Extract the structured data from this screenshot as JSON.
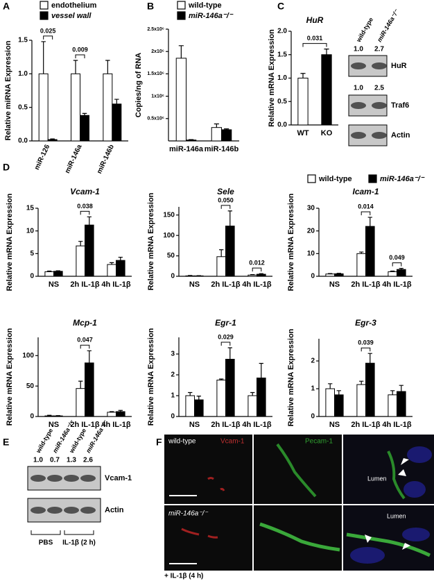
{
  "panel_labels": [
    "A",
    "B",
    "C",
    "D",
    "E",
    "F"
  ],
  "chart_data": [
    {
      "type": "bar",
      "y_label": "Relative miRNA Expression",
      "categories": [
        "miR-126",
        "miR-146a",
        "miR-146b"
      ],
      "series": [
        {
          "name": "endothelium",
          "color": "#ffffff",
          "values": [
            1.0,
            1.0,
            1.0
          ],
          "errors": [
            0.48,
            0.2,
            0.2
          ]
        },
        {
          "name": "vessel wall",
          "color": "#000000",
          "values": [
            0.02,
            0.38,
            0.55
          ],
          "errors": [
            0.01,
            0.03,
            0.07
          ]
        }
      ],
      "ylim": [
        0,
        1.5
      ],
      "yticks": [
        {
          "value": 0,
          "label": "0.0"
        },
        0.5,
        {
          "value": 1,
          "label": "1.0"
        },
        1.5
      ],
      "annotations": [
        {
          "category": "miR-126",
          "text": "0.025"
        },
        {
          "category": "miR-146a",
          "text": "0.009"
        }
      ]
    },
    {
      "type": "bar",
      "y_label": "Copies/ng of RNA",
      "categories": [
        "miR-146a",
        "miR-146b"
      ],
      "series": [
        {
          "name": "wild-type",
          "color": "#ffffff",
          "values": [
            1850000,
            300000
          ],
          "errors": [
            280000,
            80000
          ]
        },
        {
          "name": "miR-146a⁻/⁻",
          "color": "#000000",
          "values": [
            20000,
            250000
          ],
          "errors": [
            10000,
            20000
          ]
        }
      ],
      "ylim": [
        0,
        2500000
      ],
      "yticks": [
        {
          "value": 500000,
          "label": "0.5x10⁶"
        },
        {
          "value": 1000000,
          "label": "1x10⁶"
        },
        {
          "value": 1500000,
          "label": "1.5x10⁶"
        },
        {
          "value": 2000000,
          "label": "2x10⁶"
        },
        {
          "value": 2500000,
          "label": "2.5x10⁶"
        }
      ]
    },
    {
      "type": "bar",
      "title": "HuR",
      "y_label": "Relative mRNA Expression",
      "categories": [
        "WT",
        "KO"
      ],
      "series": [
        {
          "colors": [
            "#ffffff",
            "#000000"
          ],
          "values": [
            1.0,
            1.5
          ],
          "errors": [
            0.1,
            0.12
          ]
        }
      ],
      "ylim": [
        0,
        2
      ],
      "yticks": [
        {
          "value": 0,
          "label": "0.0"
        },
        0.5,
        {
          "value": 1,
          "label": "1.0"
        },
        1.5,
        {
          "value": 2,
          "label": "2.0"
        }
      ],
      "annotations": [
        {
          "categories": [
            "WT",
            "KO"
          ],
          "text": "0.031"
        }
      ]
    },
    {
      "type": "bar",
      "title": "Vcam-1",
      "y_label": "Relative mRNA Expression",
      "categories": [
        "NS",
        "2h IL-1β",
        "4h IL-1β"
      ],
      "series": [
        {
          "name": "wild-type",
          "color": "#ffffff",
          "values": [
            1.0,
            6.7,
            2.6
          ],
          "errors": [
            0.15,
            1.0,
            0.4
          ]
        },
        {
          "name": "miR-146a⁻/⁻",
          "color": "#000000",
          "values": [
            1.1,
            11.3,
            3.5
          ],
          "errors": [
            0.1,
            1.8,
            0.7
          ]
        }
      ],
      "ylim": [
        0,
        15
      ],
      "yticks": [
        0,
        5,
        10,
        15
      ],
      "annotations": [
        {
          "category": "2h IL-1β",
          "text": "0.038"
        }
      ]
    },
    {
      "type": "bar",
      "title": "Sele",
      "y_label": "Relative mRNA Expression",
      "categories": [
        "NS",
        "2h IL-1β",
        "4h IL-1β"
      ],
      "series": [
        {
          "color": "#ffffff",
          "values": [
            1,
            48,
            3
          ],
          "errors": [
            1,
            17,
            1
          ]
        },
        {
          "color": "#000000",
          "values": [
            1,
            123,
            5
          ],
          "errors": [
            0.5,
            37,
            1.5
          ]
        }
      ],
      "ylim": [
        0,
        170
      ],
      "yticks": [
        0,
        50,
        100,
        150
      ],
      "annotations": [
        {
          "category": "2h IL-1β",
          "text": "0.050"
        },
        {
          "category": "4h IL-1β",
          "text": "0.012"
        }
      ]
    },
    {
      "type": "bar",
      "title": "Icam-1",
      "y_label": "Relative mRNA Expression",
      "categories": [
        "NS",
        "2h IL-1β",
        "4h IL-1β"
      ],
      "series": [
        {
          "color": "#ffffff",
          "values": [
            1.0,
            10,
            2
          ],
          "errors": [
            0.2,
            0.7,
            0.3
          ]
        },
        {
          "color": "#000000",
          "values": [
            1.1,
            22,
            3
          ],
          "errors": [
            0.2,
            4,
            0.5
          ]
        }
      ],
      "ylim": [
        0,
        30
      ],
      "yticks": [
        0,
        10,
        20,
        30
      ],
      "annotations": [
        {
          "category": "2h IL-1β",
          "text": "0.014"
        },
        {
          "category": "4h IL-1β",
          "text": "0.049"
        }
      ]
    },
    {
      "type": "bar",
      "title": "Mcp-1",
      "y_label": "Relative mRNA Expression",
      "categories": [
        "NS",
        "2h IL-1β",
        "4h IL-1β"
      ],
      "series": [
        {
          "color": "#ffffff",
          "values": [
            1,
            46,
            7
          ],
          "errors": [
            1,
            12,
            1
          ]
        },
        {
          "color": "#000000",
          "values": [
            1,
            88,
            8
          ],
          "errors": [
            0.5,
            20,
            2
          ]
        }
      ],
      "ylim": [
        0,
        130
      ],
      "yticks": [
        0,
        50,
        100
      ],
      "annotations": [
        {
          "category": "2h IL-1β",
          "text": "0.047"
        }
      ]
    },
    {
      "type": "bar",
      "title": "Egr-1",
      "y_label": "Relative mRNA Expression",
      "categories": [
        "NS",
        "2h IL-1β",
        "4h IL-1β"
      ],
      "series": [
        {
          "color": "#ffffff",
          "values": [
            1.0,
            1.75,
            1.0
          ],
          "errors": [
            0.15,
            0.05,
            0.15
          ]
        },
        {
          "color": "#000000",
          "values": [
            0.8,
            2.75,
            1.85
          ],
          "errors": [
            0.18,
            0.55,
            0.7
          ]
        }
      ],
      "ylim": [
        0,
        3.8
      ],
      "yticks": [
        0,
        1,
        2,
        3
      ],
      "annotations": [
        {
          "category": "2h IL-1β",
          "text": "0.029"
        }
      ]
    },
    {
      "type": "bar",
      "title": "Egr-3",
      "y_label": "Relative mRNA Expression",
      "categories": [
        "NS",
        "2h IL-1β",
        "4h IL-1β"
      ],
      "series": [
        {
          "color": "#ffffff",
          "values": [
            1.0,
            1.15,
            0.78
          ],
          "errors": [
            0.18,
            0.12,
            0.15
          ]
        },
        {
          "color": "#000000",
          "values": [
            0.78,
            1.92,
            0.9
          ],
          "errors": [
            0.15,
            0.35,
            0.22
          ]
        }
      ],
      "ylim": [
        0,
        2.8
      ],
      "yticks": [
        0,
        1,
        2
      ],
      "annotations": [
        {
          "category": "2h IL-1β",
          "text": "0.039"
        }
      ]
    }
  ],
  "blots": [
    {
      "lanes": [
        "wild-type",
        "miR-146a⁻/⁻"
      ],
      "rows": [
        {
          "label": "HuR",
          "quant": [
            "1.0",
            "2.7"
          ]
        },
        {
          "label": "Traf6",
          "quant": [
            "1.0",
            "2.5"
          ]
        },
        {
          "label": "Actin"
        }
      ]
    },
    {
      "lanes": [
        "wild-type",
        "miR-146a⁻/⁻",
        "wild-type",
        "miR-146a⁻/⁻"
      ],
      "rows": [
        {
          "label": "Vcam-1",
          "quant": [
            "1.0",
            "0.7",
            "1.3",
            "2.6"
          ]
        },
        {
          "label": "Actin"
        }
      ],
      "groups": [
        "PBS",
        "IL-1β (2 h)"
      ]
    }
  ],
  "micrographs": {
    "rows": [
      "wild-type",
      "miR-146a⁻/⁻"
    ],
    "stains": [
      "Vcam-1",
      "Pecam-1"
    ],
    "lumen": [
      "Lumen",
      "Lumen"
    ],
    "treatment": "+ IL-1β (4 h)"
  }
}
